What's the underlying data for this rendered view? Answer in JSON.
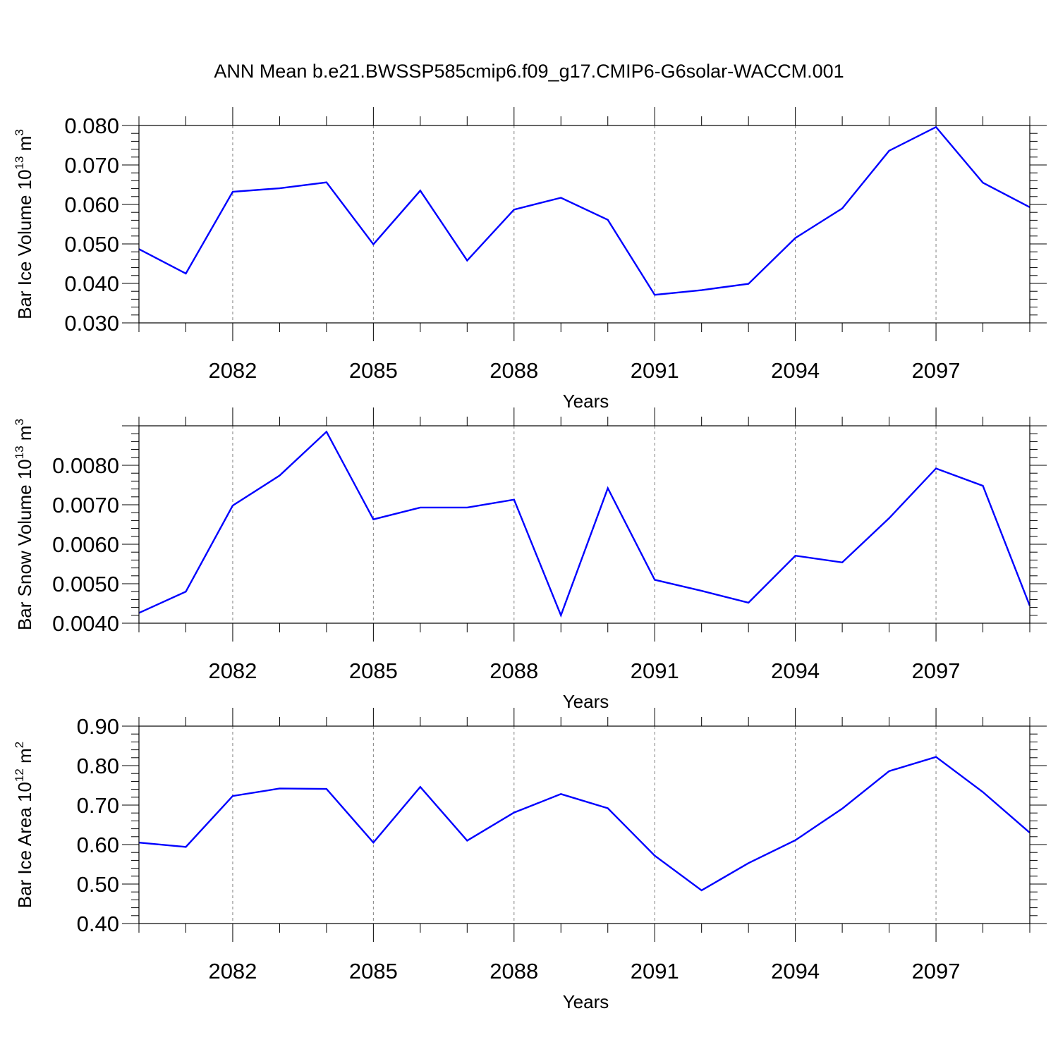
{
  "title": "ANN Mean b.e21.BWSSP585cmip6.f09_g17.CMIP6-G6solar-WACCM.001",
  "colors": {
    "line": "#0000ff",
    "axis": "#000000",
    "grid": "#808080"
  },
  "chart_data": [
    {
      "type": "line",
      "xlabel": "Years",
      "ylabel": {
        "base": "Bar Ice Volume 10",
        "exp1": "13",
        "unit": " m",
        "exp2": "3"
      },
      "xlim": [
        2080,
        2099
      ],
      "ylim": [
        0.03,
        0.08
      ],
      "xticks": [
        2082,
        2085,
        2088,
        2091,
        2094,
        2097
      ],
      "yticks": [
        "0.030",
        "0.040",
        "0.050",
        "0.060",
        "0.070",
        "0.080"
      ],
      "grid": "x-dashed",
      "x": [
        2080,
        2081,
        2082,
        2083,
        2084,
        2085,
        2086,
        2087,
        2088,
        2089,
        2090,
        2091,
        2092,
        2093,
        2094,
        2095,
        2096,
        2097,
        2098,
        2099
      ],
      "values": [
        0.0487,
        0.0425,
        0.0632,
        0.0641,
        0.0656,
        0.0499,
        0.0635,
        0.0458,
        0.0587,
        0.0617,
        0.0561,
        0.0371,
        0.0383,
        0.0399,
        0.0515,
        0.059,
        0.0736,
        0.0796,
        0.0655,
        0.0593
      ]
    },
    {
      "type": "line",
      "xlabel": "Years",
      "ylabel": {
        "base": "Bar Snow Volume 10",
        "exp1": "13",
        "unit": " m",
        "exp2": "3"
      },
      "xlim": [
        2080,
        2099
      ],
      "ylim": [
        0.004,
        0.009
      ],
      "xticks": [
        2082,
        2085,
        2088,
        2091,
        2094,
        2097
      ],
      "yticks": [
        "0.0040",
        "0.0050",
        "0.0060",
        "0.0070",
        "0.0080"
      ],
      "grid": "x-dashed",
      "x": [
        2080,
        2081,
        2082,
        2083,
        2084,
        2085,
        2086,
        2087,
        2088,
        2089,
        2090,
        2091,
        2092,
        2093,
        2094,
        2095,
        2096,
        2097,
        2098,
        2099
      ],
      "values": [
        0.00426,
        0.0048,
        0.00698,
        0.00774,
        0.00885,
        0.00663,
        0.00693,
        0.00693,
        0.00713,
        0.0042,
        0.00742,
        0.0051,
        0.00482,
        0.00452,
        0.00571,
        0.00554,
        0.00666,
        0.00792,
        0.00748,
        0.00444
      ]
    },
    {
      "type": "line",
      "xlabel": "Years",
      "ylabel": {
        "base": "Bar Ice Area 10",
        "exp1": "12",
        "unit": " m",
        "exp2": "2"
      },
      "xlim": [
        2080,
        2099
      ],
      "ylim": [
        0.4,
        0.9
      ],
      "xticks": [
        2082,
        2085,
        2088,
        2091,
        2094,
        2097
      ],
      "yticks": [
        "0.40",
        "0.50",
        "0.60",
        "0.70",
        "0.80",
        "0.90"
      ],
      "grid": "x-dashed",
      "x": [
        2080,
        2081,
        2082,
        2083,
        2084,
        2085,
        2086,
        2087,
        2088,
        2089,
        2090,
        2091,
        2092,
        2093,
        2094,
        2095,
        2096,
        2097,
        2098,
        2099
      ],
      "values": [
        0.605,
        0.594,
        0.723,
        0.742,
        0.741,
        0.605,
        0.746,
        0.61,
        0.681,
        0.728,
        0.692,
        0.572,
        0.484,
        0.553,
        0.611,
        0.691,
        0.786,
        0.822,
        0.733,
        0.63
      ]
    }
  ]
}
